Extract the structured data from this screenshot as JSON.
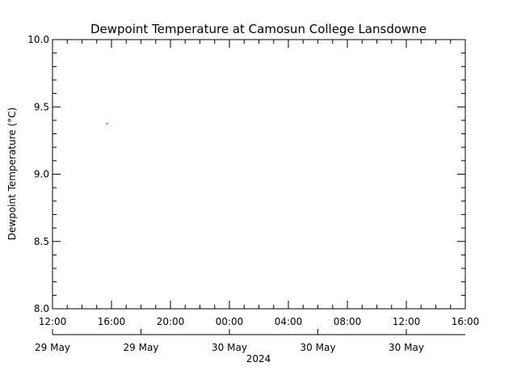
{
  "chart_data": {
    "type": "line",
    "title": "Dewpoint Temperature at Camosun College Lansdowne",
    "xlabel": "2024",
    "ylabel": "Dewpoint Temperature (°C)",
    "ylim": [
      8.0,
      10.0
    ],
    "y_ticks": [
      "8.0",
      "8.5",
      "9.0",
      "9.5",
      "10.0"
    ],
    "x_range_hours": [
      0,
      28
    ],
    "x_ticks": [
      {
        "hour": 0,
        "label": "12:00"
      },
      {
        "hour": 4,
        "label": "16:00"
      },
      {
        "hour": 8,
        "label": "20:00"
      },
      {
        "hour": 12,
        "label": "00:00"
      },
      {
        "hour": 16,
        "label": "04:00"
      },
      {
        "hour": 20,
        "label": "08:00"
      },
      {
        "hour": 24,
        "label": "12:00"
      },
      {
        "hour": 28,
        "label": "16:00"
      }
    ],
    "date_ticks": [
      {
        "hour": 0,
        "label": "29 May"
      },
      {
        "hour": 6,
        "label": "29 May"
      },
      {
        "hour": 12,
        "label": "30 May"
      },
      {
        "hour": 18,
        "label": "30 May"
      },
      {
        "hour": 24,
        "label": "30 May"
      }
    ],
    "series": [
      {
        "color": "#1e90ff",
        "points": [
          {
            "x": "29 May 15:40",
            "hour": 3.65,
            "y": 9.37
          },
          {
            "x": "29 May 15:45",
            "hour": 3.75,
            "y": 9.38
          }
        ]
      }
    ],
    "grid": false
  }
}
